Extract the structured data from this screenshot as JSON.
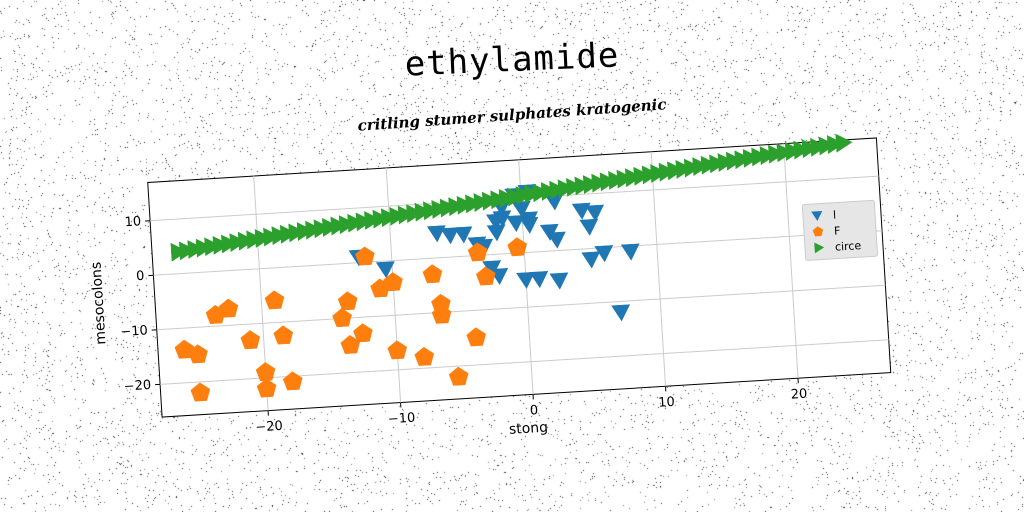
{
  "title": "ethylamide",
  "subtitle": "critling stumer sulphates kratogenic",
  "chart_data": {
    "type": "scatter",
    "xlabel": "stong",
    "ylabel": "mesocolons",
    "xlim": [
      -28,
      27
    ],
    "ylim": [
      -26,
      17
    ],
    "xticks": [
      -20,
      -10,
      0,
      10,
      20
    ],
    "yticks": [
      -20,
      -10,
      0,
      10
    ],
    "grid": true,
    "legend_position": "right",
    "series": [
      {
        "name": "l",
        "marker": "triangle-down",
        "color": "#1f77b4",
        "points": [
          [
            -0.5,
            10.5
          ],
          [
            0.5,
            11.0
          ],
          [
            -1.5,
            8.5
          ],
          [
            0.0,
            8.0
          ],
          [
            2.5,
            9.0
          ],
          [
            -1.5,
            6.5
          ],
          [
            -2.0,
            6.0
          ],
          [
            0.5,
            6.0
          ],
          [
            -0.5,
            5.5
          ],
          [
            0.5,
            5.0
          ],
          [
            -6.5,
            4.5
          ],
          [
            -5.5,
            4.0
          ],
          [
            -4.5,
            4.0
          ],
          [
            -2.0,
            4.0
          ],
          [
            2.0,
            3.5
          ],
          [
            4.5,
            7.0
          ],
          [
            5.5,
            6.5
          ],
          [
            5.0,
            4.0
          ],
          [
            2.5,
            2.0
          ],
          [
            -3.0,
            1.5
          ],
          [
            -3.5,
            2.0
          ],
          [
            -12.5,
            1.0
          ],
          [
            -10.5,
            -1.5
          ],
          [
            -2.5,
            -2.5
          ],
          [
            -2.0,
            -4.0
          ],
          [
            1.0,
            -5.0
          ],
          [
            2.5,
            -5.5
          ],
          [
            5.0,
            -2.0
          ],
          [
            6.0,
            -1.0
          ],
          [
            8.0,
            -1.0
          ],
          [
            0.0,
            -5.0
          ],
          [
            7.0,
            -12.0
          ]
        ]
      },
      {
        "name": "F",
        "marker": "pentagon",
        "color": "#ff7f0e",
        "points": [
          [
            -12.0,
            1.0
          ],
          [
            -3.5,
            0.5
          ],
          [
            -0.5,
            1.0
          ],
          [
            -7.0,
            -3.0
          ],
          [
            -3.0,
            -4.0
          ],
          [
            -10.0,
            -4.0
          ],
          [
            -11.0,
            -5.0
          ],
          [
            -13.5,
            -7.0
          ],
          [
            -19.0,
            -6.0
          ],
          [
            -22.5,
            -7.0
          ],
          [
            -23.5,
            -8.0
          ],
          [
            -14.0,
            -10.0
          ],
          [
            -6.5,
            -8.5
          ],
          [
            -6.5,
            -10.5
          ],
          [
            -21.0,
            -13.0
          ],
          [
            -18.5,
            -12.5
          ],
          [
            -12.5,
            -13.0
          ],
          [
            -13.5,
            -15.0
          ],
          [
            -26.0,
            -14.0
          ],
          [
            -25.0,
            -15.0
          ],
          [
            -4.0,
            -15.0
          ],
          [
            -10.0,
            -16.5
          ],
          [
            -8.0,
            -18.0
          ],
          [
            -20.0,
            -19.0
          ],
          [
            -18.0,
            -21.0
          ],
          [
            -20.0,
            -22.0
          ],
          [
            -25.0,
            -22.0
          ],
          [
            -5.5,
            -22.0
          ]
        ]
      },
      {
        "name": "circe",
        "marker": "triangle-right",
        "color": "#2ca02c",
        "line": {
          "x_start": -26,
          "x_end": 24.5,
          "y_start": 4.0,
          "y_end": 16.5,
          "count": 80
        }
      }
    ]
  }
}
